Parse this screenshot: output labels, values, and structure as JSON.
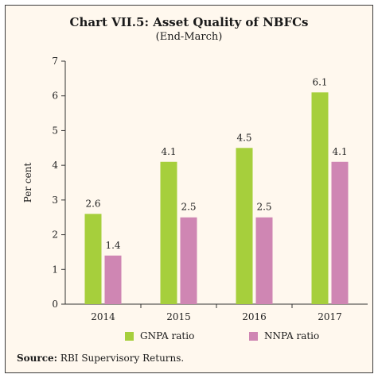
{
  "chart_data": {
    "type": "bar",
    "title": "Chart VII.5: Asset Quality of NBFCs",
    "subtitle": "(End-March)",
    "ylabel": "Per cent",
    "xlabel": "",
    "ylim": [
      0,
      7
    ],
    "yticks": [
      "0",
      "1",
      "2",
      "3",
      "4",
      "5",
      "6",
      "7"
    ],
    "categories": [
      "2014",
      "2015",
      "2016",
      "2017"
    ],
    "series": [
      {
        "name": "GNPA ratio",
        "color": "#a6cf3c",
        "values": [
          2.6,
          4.1,
          4.5,
          6.1
        ],
        "labels": [
          "2.6",
          "4.1",
          "4.5",
          "6.1"
        ]
      },
      {
        "name": "NNPA ratio",
        "color": "#cf86b3",
        "values": [
          1.4,
          2.5,
          2.5,
          4.1
        ],
        "labels": [
          "1.4",
          "2.5",
          "2.5",
          "4.1"
        ]
      }
    ],
    "grid": false,
    "legend": "bottom"
  },
  "source": {
    "label": "Source:",
    "text": " RBI Supervisory Returns."
  }
}
